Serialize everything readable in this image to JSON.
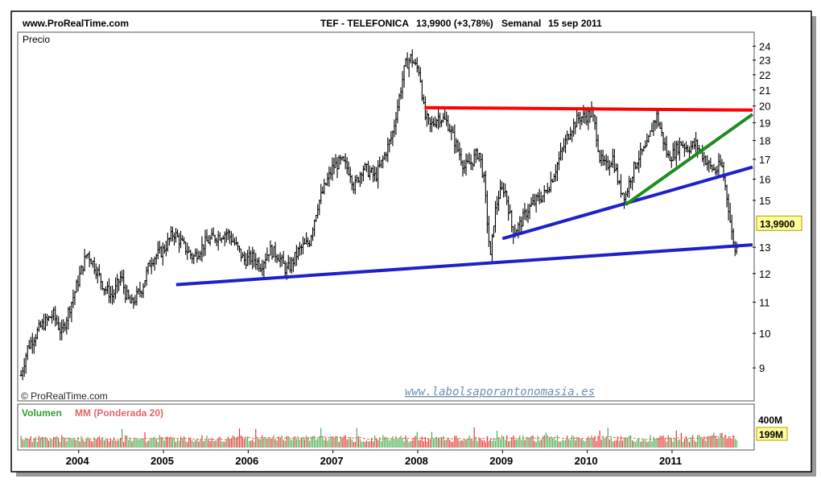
{
  "header": {
    "site": "www.ProRealTime.com",
    "instrument": "TEF - TELEFONICA",
    "last": "13,9900 (+3,78%)",
    "period": "Semanal",
    "date": "15 sep 2011"
  },
  "price_panel": {
    "label": "Precio",
    "copyright": "© ProRealTime.com",
    "watermark": "www.labolsaporantonomasia.es",
    "last_price_tag": "13,9900"
  },
  "volume_panel": {
    "label_volume": "Volumen",
    "label_ma": "MM (Ponderada 20)",
    "tick_top": "400M",
    "last_tag": "199M"
  },
  "colors": {
    "up_volume": "#4caf50",
    "down_volume": "#e53935",
    "resistance": "#ff0000",
    "support": "#1f1fcc",
    "trend_green": "#1e8c1e",
    "price_tag_bg": "#ffff99"
  },
  "chart_data": [
    {
      "type": "line",
      "title": "TEF - TELEFONICA",
      "scale": "log",
      "ylim": [
        8.2,
        24.8
      ],
      "y_ticks": [
        9,
        10,
        11,
        12,
        13,
        15,
        16,
        17,
        18,
        19,
        20,
        21,
        22,
        23,
        24
      ],
      "x_ticks": [
        "2004",
        "2005",
        "2006",
        "2007",
        "2008",
        "2009",
        "2010",
        "2011"
      ],
      "x_range": [
        2003.3,
        2011.95
      ],
      "series": [
        {
          "points": [
            [
              2003.32,
              8.8
            ],
            [
              2003.4,
              9.6
            ],
            [
              2003.55,
              10.2
            ],
            [
              2003.7,
              10.6
            ],
            [
              2003.8,
              10.0
            ],
            [
              2003.95,
              11.3
            ],
            [
              2004.1,
              12.8
            ],
            [
              2004.2,
              12.2
            ],
            [
              2004.3,
              11.5
            ],
            [
              2004.4,
              11.2
            ],
            [
              2004.5,
              11.9
            ],
            [
              2004.55,
              11.3
            ],
            [
              2004.62,
              10.9
            ],
            [
              2004.75,
              11.5
            ],
            [
              2004.85,
              12.5
            ],
            [
              2005.0,
              12.9
            ],
            [
              2005.12,
              13.6
            ],
            [
              2005.25,
              13.0
            ],
            [
              2005.35,
              12.6
            ],
            [
              2005.5,
              13.2
            ],
            [
              2005.6,
              13.4
            ],
            [
              2005.75,
              13.6
            ],
            [
              2005.85,
              13.1
            ],
            [
              2005.95,
              12.5
            ],
            [
              2006.05,
              12.6
            ],
            [
              2006.15,
              12.3
            ],
            [
              2006.25,
              12.9
            ],
            [
              2006.35,
              12.7
            ],
            [
              2006.45,
              12.1
            ],
            [
              2006.5,
              12.3
            ],
            [
              2006.6,
              12.9
            ],
            [
              2006.72,
              13.2
            ],
            [
              2006.82,
              14.8
            ],
            [
              2006.9,
              15.6
            ],
            [
              2007.0,
              16.6
            ],
            [
              2007.1,
              16.9
            ],
            [
              2007.2,
              16.4
            ],
            [
              2007.25,
              15.6
            ],
            [
              2007.35,
              16.6
            ],
            [
              2007.45,
              16.3
            ],
            [
              2007.5,
              16.1
            ],
            [
              2007.6,
              17.1
            ],
            [
              2007.7,
              18.3
            ],
            [
              2007.78,
              20.5
            ],
            [
              2007.85,
              22.6
            ],
            [
              2007.92,
              23.2
            ],
            [
              2007.97,
              22.6
            ],
            [
              2008.02,
              22.3
            ],
            [
              2008.08,
              19.4
            ],
            [
              2008.15,
              18.8
            ],
            [
              2008.25,
              19.4
            ],
            [
              2008.35,
              19.0
            ],
            [
              2008.45,
              17.8
            ],
            [
              2008.55,
              16.6
            ],
            [
              2008.62,
              16.8
            ],
            [
              2008.72,
              17.4
            ],
            [
              2008.78,
              16.0
            ],
            [
              2008.83,
              13.6
            ],
            [
              2008.86,
              12.5
            ],
            [
              2008.9,
              14.2
            ],
            [
              2008.95,
              15.2
            ],
            [
              2009.02,
              15.6
            ],
            [
              2009.08,
              14.5
            ],
            [
              2009.12,
              13.6
            ],
            [
              2009.2,
              13.9
            ],
            [
              2009.3,
              14.6
            ],
            [
              2009.4,
              15.0
            ],
            [
              2009.5,
              15.3
            ],
            [
              2009.6,
              16.2
            ],
            [
              2009.7,
              17.4
            ],
            [
              2009.8,
              18.6
            ],
            [
              2009.9,
              19.3
            ],
            [
              2010.0,
              19.4
            ],
            [
              2010.05,
              19.6
            ],
            [
              2010.1,
              18.6
            ],
            [
              2010.15,
              17.0
            ],
            [
              2010.22,
              16.6
            ],
            [
              2010.3,
              17.1
            ],
            [
              2010.38,
              15.6
            ],
            [
              2010.45,
              15.2
            ],
            [
              2010.52,
              16.2
            ],
            [
              2010.6,
              17.1
            ],
            [
              2010.7,
              17.6
            ],
            [
              2010.78,
              19.0
            ],
            [
              2010.82,
              19.4
            ],
            [
              2010.88,
              18.3
            ],
            [
              2010.95,
              17.1
            ],
            [
              2011.02,
              17.3
            ],
            [
              2011.1,
              17.9
            ],
            [
              2011.18,
              17.6
            ],
            [
              2011.28,
              17.8
            ],
            [
              2011.35,
              17.3
            ],
            [
              2011.45,
              16.6
            ],
            [
              2011.52,
              16.4
            ],
            [
              2011.58,
              16.8
            ],
            [
              2011.63,
              15.6
            ],
            [
              2011.67,
              14.6
            ],
            [
              2011.7,
              13.6
            ],
            [
              2011.73,
              13.2
            ],
            [
              2011.75,
              12.6
            ],
            [
              2011.78,
              13.99
            ]
          ]
        }
      ],
      "trendlines": [
        {
          "name": "resistance",
          "color": "#ff0000",
          "from": [
            2008.08,
            19.9
          ],
          "to": [
            2011.95,
            19.75
          ]
        },
        {
          "name": "long_support",
          "color": "#1f1fcc",
          "from": [
            2005.15,
            11.6
          ],
          "to": [
            2011.95,
            13.1
          ]
        },
        {
          "name": "mid_support",
          "color": "#1f1fcc",
          "from": [
            2009.0,
            13.35
          ],
          "to": [
            2011.95,
            16.6
          ]
        },
        {
          "name": "short_uptrend",
          "color": "#1e8c1e",
          "from": [
            2010.45,
            14.8
          ],
          "to": [
            2011.95,
            19.5
          ]
        }
      ]
    },
    {
      "type": "bar",
      "title": "Volumen",
      "y_ticks": [
        "400M"
      ],
      "ylim": [
        0,
        500
      ],
      "last_value": 199,
      "ma_series_name": "MM (Ponderada 20)"
    }
  ]
}
